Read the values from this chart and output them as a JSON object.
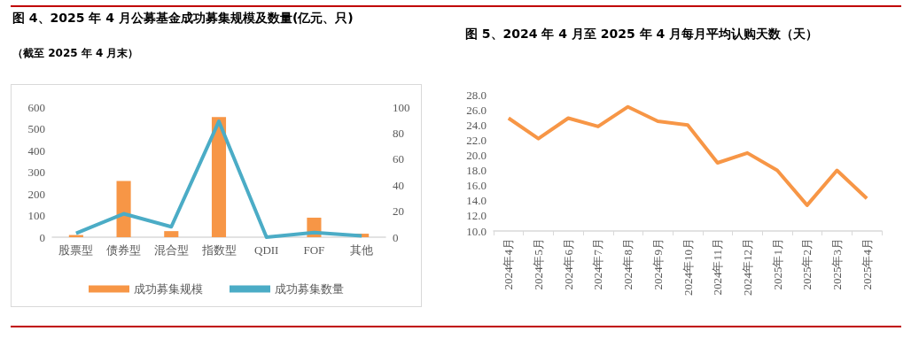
{
  "chart_data": [
    {
      "type": "bar",
      "title": "图 4、2025 年 4 月公募基金成功募集规模及数量(亿元、只)",
      "subtitle": "（截至 2025 年 4 月末）",
      "categories": [
        "股票型",
        "债券型",
        "混合型",
        "指数型",
        "QDII",
        "FOF",
        "其他"
      ],
      "series": [
        {
          "name": "成功募集规模",
          "type": "bar",
          "color": "#f79646",
          "values": [
            10,
            259,
            28,
            554,
            0,
            90,
            16
          ]
        },
        {
          "name": "成功募集数量",
          "type": "line",
          "axis": "y2",
          "color": "#4bacc6",
          "values": [
            3,
            18,
            8,
            89,
            0,
            3.5,
            1
          ]
        }
      ],
      "ylim": [
        0,
        600
      ],
      "yticks": [
        0,
        100,
        200,
        300,
        400,
        500,
        600
      ],
      "y2lim": [
        0,
        100
      ],
      "y2ticks": [
        0,
        20,
        40,
        60,
        80,
        100
      ],
      "legend": "bottom",
      "grid": false,
      "marker": "none"
    },
    {
      "type": "line",
      "title": "图 5、2024 年 4 月至 2025 年 4 月每月平均认购天数（天）",
      "categories": [
        "2024年4月",
        "2024年5月",
        "2024年6月",
        "2024年7月",
        "2024年8月",
        "2024年9月",
        "2024年10月",
        "2024年11月",
        "2024年12月",
        "2025年1月",
        "2025年2月",
        "2025年3月",
        "2025年4月"
      ],
      "series": [
        {
          "color": "#f79646",
          "values": [
            24.9,
            22.2,
            24.9,
            23.8,
            26.4,
            24.5,
            24.0,
            19.0,
            20.3,
            18.0,
            13.4,
            18.0,
            14.3
          ]
        }
      ],
      "ylim": [
        10,
        28
      ],
      "yticks": [
        {
          "value": 10,
          "label": "10.0"
        },
        {
          "value": 12,
          "label": "12.0"
        },
        {
          "value": 14,
          "label": "14.0"
        },
        {
          "value": 16,
          "label": "16.0"
        },
        {
          "value": 18,
          "label": "18.0"
        },
        {
          "value": 20,
          "label": "20.0"
        },
        {
          "value": 22,
          "label": "22.0"
        },
        {
          "value": 24,
          "label": "24.0"
        },
        {
          "value": 26,
          "label": "26.0"
        },
        {
          "value": 28,
          "label": "28.0"
        }
      ],
      "legend": false,
      "grid": false,
      "marker": "none"
    }
  ]
}
